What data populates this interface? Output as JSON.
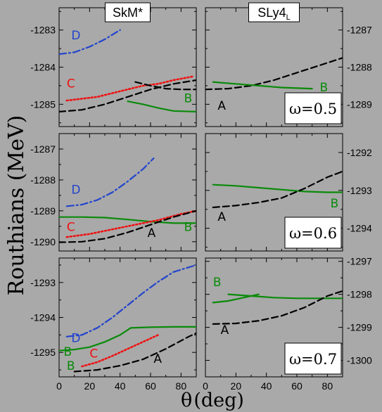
{
  "figure": {
    "ylabel": "Routhians (MeV)",
    "xlabel_symbol": "θ",
    "xlabel_unit": "(deg)",
    "column_titles": [
      "SkM*",
      "SLy4L"
    ],
    "colors": {
      "A": "#000000",
      "B": "#0a8a0a",
      "C": "#ee1111",
      "D": "#2244cc"
    }
  },
  "chart_data": [
    {
      "type": "line",
      "row": 0,
      "col": 0,
      "title": "SkM*",
      "xlim": [
        0,
        90
      ],
      "ylim": [
        -1285.6,
        -1282.4
      ],
      "yticks": [
        -1285,
        -1284,
        -1283
      ],
      "xticks": [
        0,
        20,
        40,
        60,
        80
      ],
      "series": [
        {
          "name": "D",
          "style": "dashdot",
          "x": [
            0,
            10,
            20,
            30,
            40
          ],
          "y": [
            -1283.65,
            -1283.6,
            -1283.45,
            -1283.25,
            -1283.0
          ]
        },
        {
          "name": "C",
          "style": "dotted",
          "x": [
            5,
            15,
            25,
            35,
            45,
            55,
            65,
            75,
            88
          ],
          "y": [
            -1284.9,
            -1284.85,
            -1284.8,
            -1284.7,
            -1284.6,
            -1284.5,
            -1284.45,
            -1284.35,
            -1284.25
          ]
        },
        {
          "name": "A",
          "style": "dashed",
          "x": [
            0,
            15,
            30,
            45,
            60,
            75,
            90
          ],
          "y": [
            -1285.2,
            -1285.15,
            -1285.0,
            -1284.8,
            -1284.6,
            -1284.45,
            -1284.35
          ]
        },
        {
          "name": "A",
          "style": "dashed",
          "x": [
            50,
            60,
            70,
            80,
            90
          ],
          "y": [
            -1284.4,
            -1284.5,
            -1284.58,
            -1284.6,
            -1284.6
          ]
        },
        {
          "name": "B",
          "style": "solid",
          "x": [
            45,
            55,
            65,
            75,
            90
          ],
          "y": [
            -1284.92,
            -1285.0,
            -1285.1,
            -1285.18,
            -1285.2
          ]
        }
      ],
      "labels": [
        {
          "text": "D",
          "series": "D",
          "x": 8,
          "y": -1283.25
        },
        {
          "text": "C",
          "series": "C",
          "x": 5,
          "y": -1284.55
        },
        {
          "text": "B",
          "series": "B",
          "x": 82,
          "y": -1284.95
        }
      ]
    },
    {
      "type": "line",
      "row": 0,
      "col": 1,
      "title": "SLy4L",
      "xlim": [
        0,
        90
      ],
      "ylim": [
        -1289.6,
        -1286.4
      ],
      "yticks": [
        -1289,
        -1288,
        -1287
      ],
      "xticks": [
        0,
        20,
        40,
        60,
        80
      ],
      "omega": "ω=0.5",
      "series": [
        {
          "name": "A",
          "style": "dashed",
          "x": [
            0,
            15,
            30,
            45,
            60,
            75,
            90
          ],
          "y": [
            -1288.6,
            -1288.58,
            -1288.5,
            -1288.35,
            -1288.15,
            -1287.95,
            -1287.75
          ]
        },
        {
          "name": "B",
          "style": "solid",
          "x": [
            5,
            20,
            35,
            50,
            70
          ],
          "y": [
            -1288.4,
            -1288.45,
            -1288.5,
            -1288.55,
            -1288.58
          ]
        }
      ],
      "labels": [
        {
          "text": "A",
          "series": "A",
          "x": 8,
          "y": -1289.15
        },
        {
          "text": "B",
          "series": "B",
          "x": 75,
          "y": -1288.65
        }
      ]
    },
    {
      "type": "line",
      "row": 1,
      "col": 0,
      "xlim": [
        0,
        90
      ],
      "ylim": [
        -1290.3,
        -1286.5
      ],
      "yticks": [
        -1290,
        -1289,
        -1288,
        -1287
      ],
      "xticks": [
        0,
        20,
        40,
        60,
        80
      ],
      "series": [
        {
          "name": "D",
          "style": "dashdot",
          "x": [
            5,
            15,
            25,
            35,
            45,
            55,
            62
          ],
          "y": [
            -1288.85,
            -1288.8,
            -1288.65,
            -1288.4,
            -1288.05,
            -1287.65,
            -1287.3
          ]
        },
        {
          "name": "B",
          "style": "solid",
          "x": [
            0,
            15,
            30,
            45,
            60,
            75,
            90
          ],
          "y": [
            -1289.2,
            -1289.2,
            -1289.22,
            -1289.28,
            -1289.35,
            -1289.4,
            -1289.4
          ]
        },
        {
          "name": "C",
          "style": "dotted",
          "x": [
            5,
            20,
            35,
            50,
            65,
            80,
            90
          ],
          "y": [
            -1289.85,
            -1289.75,
            -1289.6,
            -1289.45,
            -1289.3,
            -1289.1,
            -1289.0
          ]
        },
        {
          "name": "A",
          "style": "dashed",
          "x": [
            0,
            15,
            30,
            45,
            60,
            75,
            90
          ],
          "y": [
            -1290.02,
            -1290.0,
            -1289.9,
            -1289.7,
            -1289.45,
            -1289.2,
            -1289.0
          ]
        }
      ],
      "labels": [
        {
          "text": "D",
          "series": "D",
          "x": 8,
          "y": -1288.45
        },
        {
          "text": "C",
          "series": "C",
          "x": 5,
          "y": -1289.65
        },
        {
          "text": "A",
          "series": "A",
          "x": 58,
          "y": -1289.85
        },
        {
          "text": "B",
          "series": "B",
          "x": 82,
          "y": -1289.65
        }
      ]
    },
    {
      "type": "line",
      "row": 1,
      "col": 1,
      "xlim": [
        0,
        90
      ],
      "ylim": [
        -1294.6,
        -1291.5
      ],
      "yticks": [
        -1294,
        -1293,
        -1292
      ],
      "xticks": [
        0,
        20,
        40,
        60,
        80
      ],
      "omega": "ω=0.6",
      "series": [
        {
          "name": "B",
          "style": "solid",
          "x": [
            5,
            20,
            35,
            50,
            65,
            80,
            90
          ],
          "y": [
            -1292.85,
            -1292.88,
            -1292.93,
            -1292.98,
            -1293.03,
            -1293.05,
            -1293.05
          ]
        },
        {
          "name": "A",
          "style": "dashed",
          "x": [
            5,
            20,
            35,
            50,
            65,
            80,
            90
          ],
          "y": [
            -1293.45,
            -1293.4,
            -1293.32,
            -1293.2,
            -1292.95,
            -1292.65,
            -1292.5
          ]
        }
      ],
      "labels": [
        {
          "text": "A",
          "series": "A",
          "x": 8,
          "y": -1293.8
        },
        {
          "text": "B",
          "series": "B",
          "x": 82,
          "y": -1293.45
        }
      ]
    },
    {
      "type": "line",
      "row": 2,
      "col": 0,
      "xlim": [
        0,
        90
      ],
      "ylim": [
        -1295.7,
        -1292.3
      ],
      "yticks": [
        -1295,
        -1294,
        -1293
      ],
      "xticks": [
        0,
        20,
        40,
        60,
        80
      ],
      "series": [
        {
          "name": "D",
          "style": "dashdot",
          "x": [
            5,
            15,
            25,
            35,
            45,
            55,
            65,
            75,
            90
          ],
          "y": [
            -1294.55,
            -1294.5,
            -1294.3,
            -1294.0,
            -1293.65,
            -1293.3,
            -1292.98,
            -1292.7,
            -1292.5
          ]
        },
        {
          "name": "B",
          "style": "solid",
          "x": [
            0,
            10,
            20,
            30,
            40,
            47
          ],
          "y": [
            -1294.95,
            -1294.92,
            -1294.85,
            -1294.7,
            -1294.5,
            -1294.3
          ]
        },
        {
          "name": "B",
          "style": "solid",
          "x": [
            47,
            60,
            75,
            90
          ],
          "y": [
            -1294.3,
            -1294.28,
            -1294.27,
            -1294.27
          ]
        },
        {
          "name": "C",
          "style": "dotted",
          "x": [
            15,
            25,
            35,
            45,
            55,
            65
          ],
          "y": [
            -1295.4,
            -1295.28,
            -1295.1,
            -1294.9,
            -1294.7,
            -1294.5
          ]
        },
        {
          "name": "A",
          "style": "dashed",
          "x": [
            10,
            25,
            40,
            55,
            70,
            85,
            90
          ],
          "y": [
            -1295.55,
            -1295.5,
            -1295.38,
            -1295.2,
            -1294.9,
            -1294.55,
            -1294.45
          ]
        }
      ],
      "labels": [
        {
          "text": "D",
          "series": "D",
          "x": 8,
          "y": -1294.7
        },
        {
          "text": "B",
          "series": "B",
          "x": 3,
          "y": -1295.1
        },
        {
          "text": "B",
          "series": "B",
          "x": 5,
          "y": -1295.5
        },
        {
          "text": "C",
          "series": "C",
          "x": 20,
          "y": -1295.15
        },
        {
          "text": "A",
          "series": "A",
          "x": 62,
          "y": -1295.3
        }
      ]
    },
    {
      "type": "line",
      "row": 2,
      "col": 1,
      "xlim": [
        0,
        90
      ],
      "ylim": [
        -1300.5,
        -1296.9
      ],
      "yticks": [
        -1300,
        -1299,
        -1298,
        -1297
      ],
      "xticks": [
        0,
        20,
        40,
        60,
        80
      ],
      "omega": "ω=0.7",
      "series": [
        {
          "name": "B",
          "style": "solid",
          "x": [
            5,
            15,
            25,
            35
          ],
          "y": [
            -1298.25,
            -1298.2,
            -1298.1,
            -1298.0
          ]
        },
        {
          "name": "B",
          "style": "solid",
          "x": [
            15,
            30,
            45,
            60,
            75,
            90
          ],
          "y": [
            -1298.0,
            -1298.05,
            -1298.1,
            -1298.12,
            -1298.12,
            -1298.12
          ]
        },
        {
          "name": "A",
          "style": "dashed",
          "x": [
            5,
            20,
            35,
            50,
            65,
            80,
            90
          ],
          "y": [
            -1298.9,
            -1298.88,
            -1298.8,
            -1298.65,
            -1298.4,
            -1298.05,
            -1297.9
          ]
        }
      ],
      "labels": [
        {
          "text": "B",
          "series": "B",
          "x": 5,
          "y": -1297.75
        },
        {
          "text": "A",
          "series": "A",
          "x": 10,
          "y": -1299.2
        }
      ]
    }
  ]
}
